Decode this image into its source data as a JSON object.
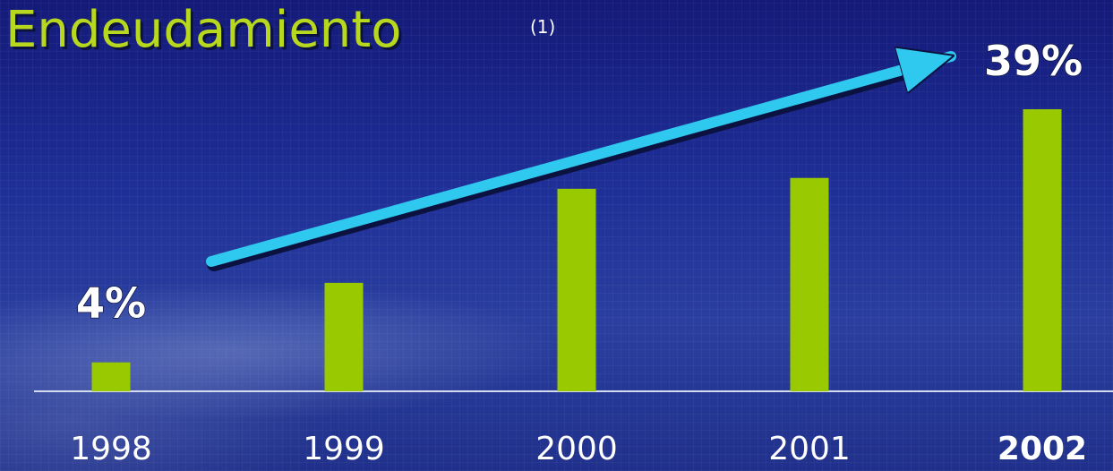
{
  "chart_data": {
    "type": "bar",
    "title": "Endeudamiento",
    "title_note": "(1)",
    "categories": [
      "1998",
      "1999",
      "2000",
      "2001",
      "2002"
    ],
    "values": [
      4,
      15,
      28,
      29.5,
      39
    ],
    "data_labels": [
      {
        "category": "1998",
        "text": "4%"
      },
      {
        "category": "2002",
        "text": "39%"
      }
    ],
    "bold_categories": [
      "2002"
    ],
    "ylim": [
      0,
      40
    ],
    "grid": false,
    "bar_color": "#99c900",
    "arrow_color": "#2fc8ee",
    "title_color": "#b7d81e"
  }
}
